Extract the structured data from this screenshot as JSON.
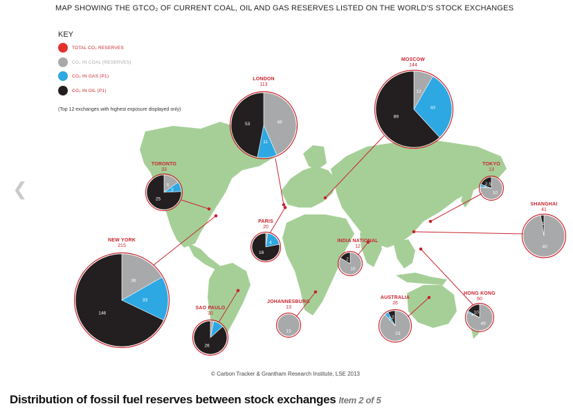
{
  "title": "MAP SHOWING THE GTCO₂ OF CURRENT COAL, OIL AND GAS RESERVES LISTED ON THE WORLD'S STOCK EXCHANGES",
  "key": {
    "heading": "KEY",
    "items": [
      {
        "label": "TOTAL CO₂ RESERVES",
        "color": "#e3312d"
      },
      {
        "label": "CO₂ IN COAL (RESERVES)",
        "color": "#a8a9ab"
      },
      {
        "label": "CO₂ IN GAS (P1)",
        "color": "#2ea8e2"
      },
      {
        "label": "CO₂ IN OIL (P1)",
        "color": "#231f20"
      }
    ],
    "note": "(Top 12 exchanges with highest exposure displayed only)"
  },
  "colors": {
    "oil": "#231f20",
    "coal": "#a8a9ab",
    "gas": "#2ea8e2",
    "outline": "#c8232c",
    "land": "#a6cf98"
  },
  "exchanges": [
    {
      "name": "LONDON",
      "total": "113",
      "segments": [
        {
          "type": "coal",
          "value": 49,
          "label": "49"
        },
        {
          "type": "gas",
          "value": 11,
          "label": "11"
        },
        {
          "type": "oil",
          "value": 53,
          "label": "53"
        }
      ]
    },
    {
      "name": "MOSCOW",
      "total": "144",
      "segments": [
        {
          "type": "coal",
          "value": 12,
          "label": "12"
        },
        {
          "type": "gas",
          "value": 43,
          "label": "43"
        },
        {
          "type": "oil",
          "value": 89,
          "label": "89"
        }
      ]
    },
    {
      "name": "TORONTO",
      "total": "33",
      "segments": [
        {
          "type": "coal",
          "value": 5,
          "label": "5"
        },
        {
          "type": "gas",
          "value": 3,
          "label": "3"
        },
        {
          "type": "oil",
          "value": 25,
          "label": "25"
        }
      ]
    },
    {
      "name": "TOKYO",
      "total": "13",
      "segments": [
        {
          "type": "coal",
          "value": 10,
          "label": "10"
        },
        {
          "type": "gas",
          "value": 0.5,
          "label": ".5"
        },
        {
          "type": "oil",
          "value": 2.5,
          "label": "2.5"
        }
      ]
    },
    {
      "name": "SHANGHAI",
      "total": "41",
      "segments": [
        {
          "type": "coal",
          "value": 40,
          "label": "40"
        },
        {
          "type": "oil",
          "value": 1,
          "label": "1"
        }
      ]
    },
    {
      "name": "PARIS",
      "total": "20",
      "segments": [
        {
          "type": "coal",
          "value": 0.5,
          "label": ""
        },
        {
          "type": "gas",
          "value": 4,
          "label": "4"
        },
        {
          "type": "oil",
          "value": 16,
          "label": "16"
        }
      ]
    },
    {
      "name": "INDIA NATIONAL",
      "total": "12",
      "segments": [
        {
          "type": "coal",
          "value": 10,
          "label": "10"
        },
        {
          "type": "oil",
          "value": 2,
          "label": "2"
        }
      ]
    },
    {
      "name": "NEW YORK",
      "total": "215",
      "segments": [
        {
          "type": "coal",
          "value": 36,
          "label": "36"
        },
        {
          "type": "gas",
          "value": 33,
          "label": "33"
        },
        {
          "type": "oil",
          "value": 146,
          "label": "146"
        }
      ]
    },
    {
      "name": "SAO PAULO",
      "total": "30",
      "segments": [
        {
          "type": "coal",
          "value": 1,
          "label": ""
        },
        {
          "type": "gas",
          "value": 3,
          "label": ""
        },
        {
          "type": "oil",
          "value": 26,
          "label": "26"
        }
      ]
    },
    {
      "name": "JOHANNESBURG",
      "total": "13",
      "segments": [
        {
          "type": "coal",
          "value": 13,
          "label": "13"
        }
      ]
    },
    {
      "name": "AUSTRALIA",
      "total": "26",
      "segments": [
        {
          "type": "coal",
          "value": 23,
          "label": "23"
        },
        {
          "type": "gas",
          "value": 1,
          "label": "1"
        },
        {
          "type": "oil",
          "value": 2,
          "label": "2"
        }
      ]
    },
    {
      "name": "HONG KONG",
      "total": "60",
      "segments": [
        {
          "type": "coal",
          "value": 49,
          "label": "49"
        },
        {
          "type": "gas",
          "value": 1,
          "label": "1"
        },
        {
          "type": "oil",
          "value": 10,
          "label": "10"
        }
      ]
    }
  ],
  "credit": "© Carbon Tracker & Grantham Research Institute, LSE 2013",
  "caption": {
    "title": "Distribution of fossil fuel reserves between stock exchanges",
    "item": "Item 2 of 5"
  },
  "nav": {
    "prev_icon": "chevron-left-icon"
  }
}
